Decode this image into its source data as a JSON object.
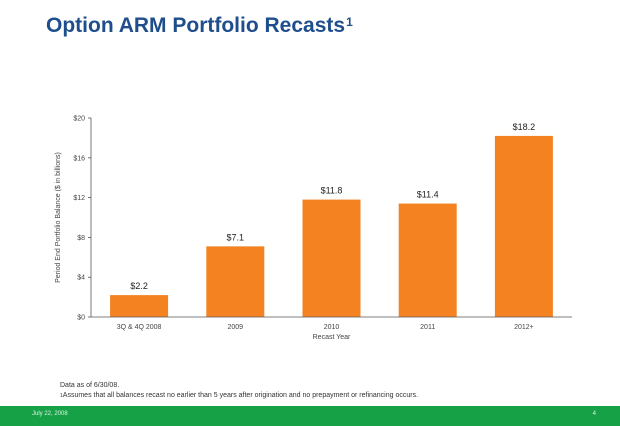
{
  "title": "Option ARM Portfolio Recasts",
  "title_footnote_mark": "1",
  "chart_data": {
    "type": "bar",
    "categories": [
      "3Q & 4Q 2008",
      "2009",
      "2010",
      "2011",
      "2012+"
    ],
    "values": [
      2.2,
      7.1,
      11.8,
      11.4,
      18.2
    ],
    "value_labels": [
      "$2.2",
      "$7.1",
      "$11.8",
      "$11.4",
      "$18.2"
    ],
    "xlabel": "Recast Year",
    "ylabel": "Period End Portfolio Balance ($ in billions)",
    "ylim": [
      0,
      20
    ],
    "yticks": [
      0,
      4,
      8,
      12,
      16,
      20
    ],
    "ytick_labels": [
      "$0",
      "$4",
      "$8",
      "$12",
      "$16",
      "$20"
    ],
    "bar_color": "#f58220",
    "grid": false
  },
  "notes": {
    "line1": "Data as of 6/30/08.",
    "line2_mark": "1",
    "line2": "Assumes that all balances recast no earlier than 5 years after origination and no prepayment or refinancing occurs."
  },
  "footer": {
    "date": "July 22, 2008",
    "page": "4",
    "color": "#17a146"
  }
}
